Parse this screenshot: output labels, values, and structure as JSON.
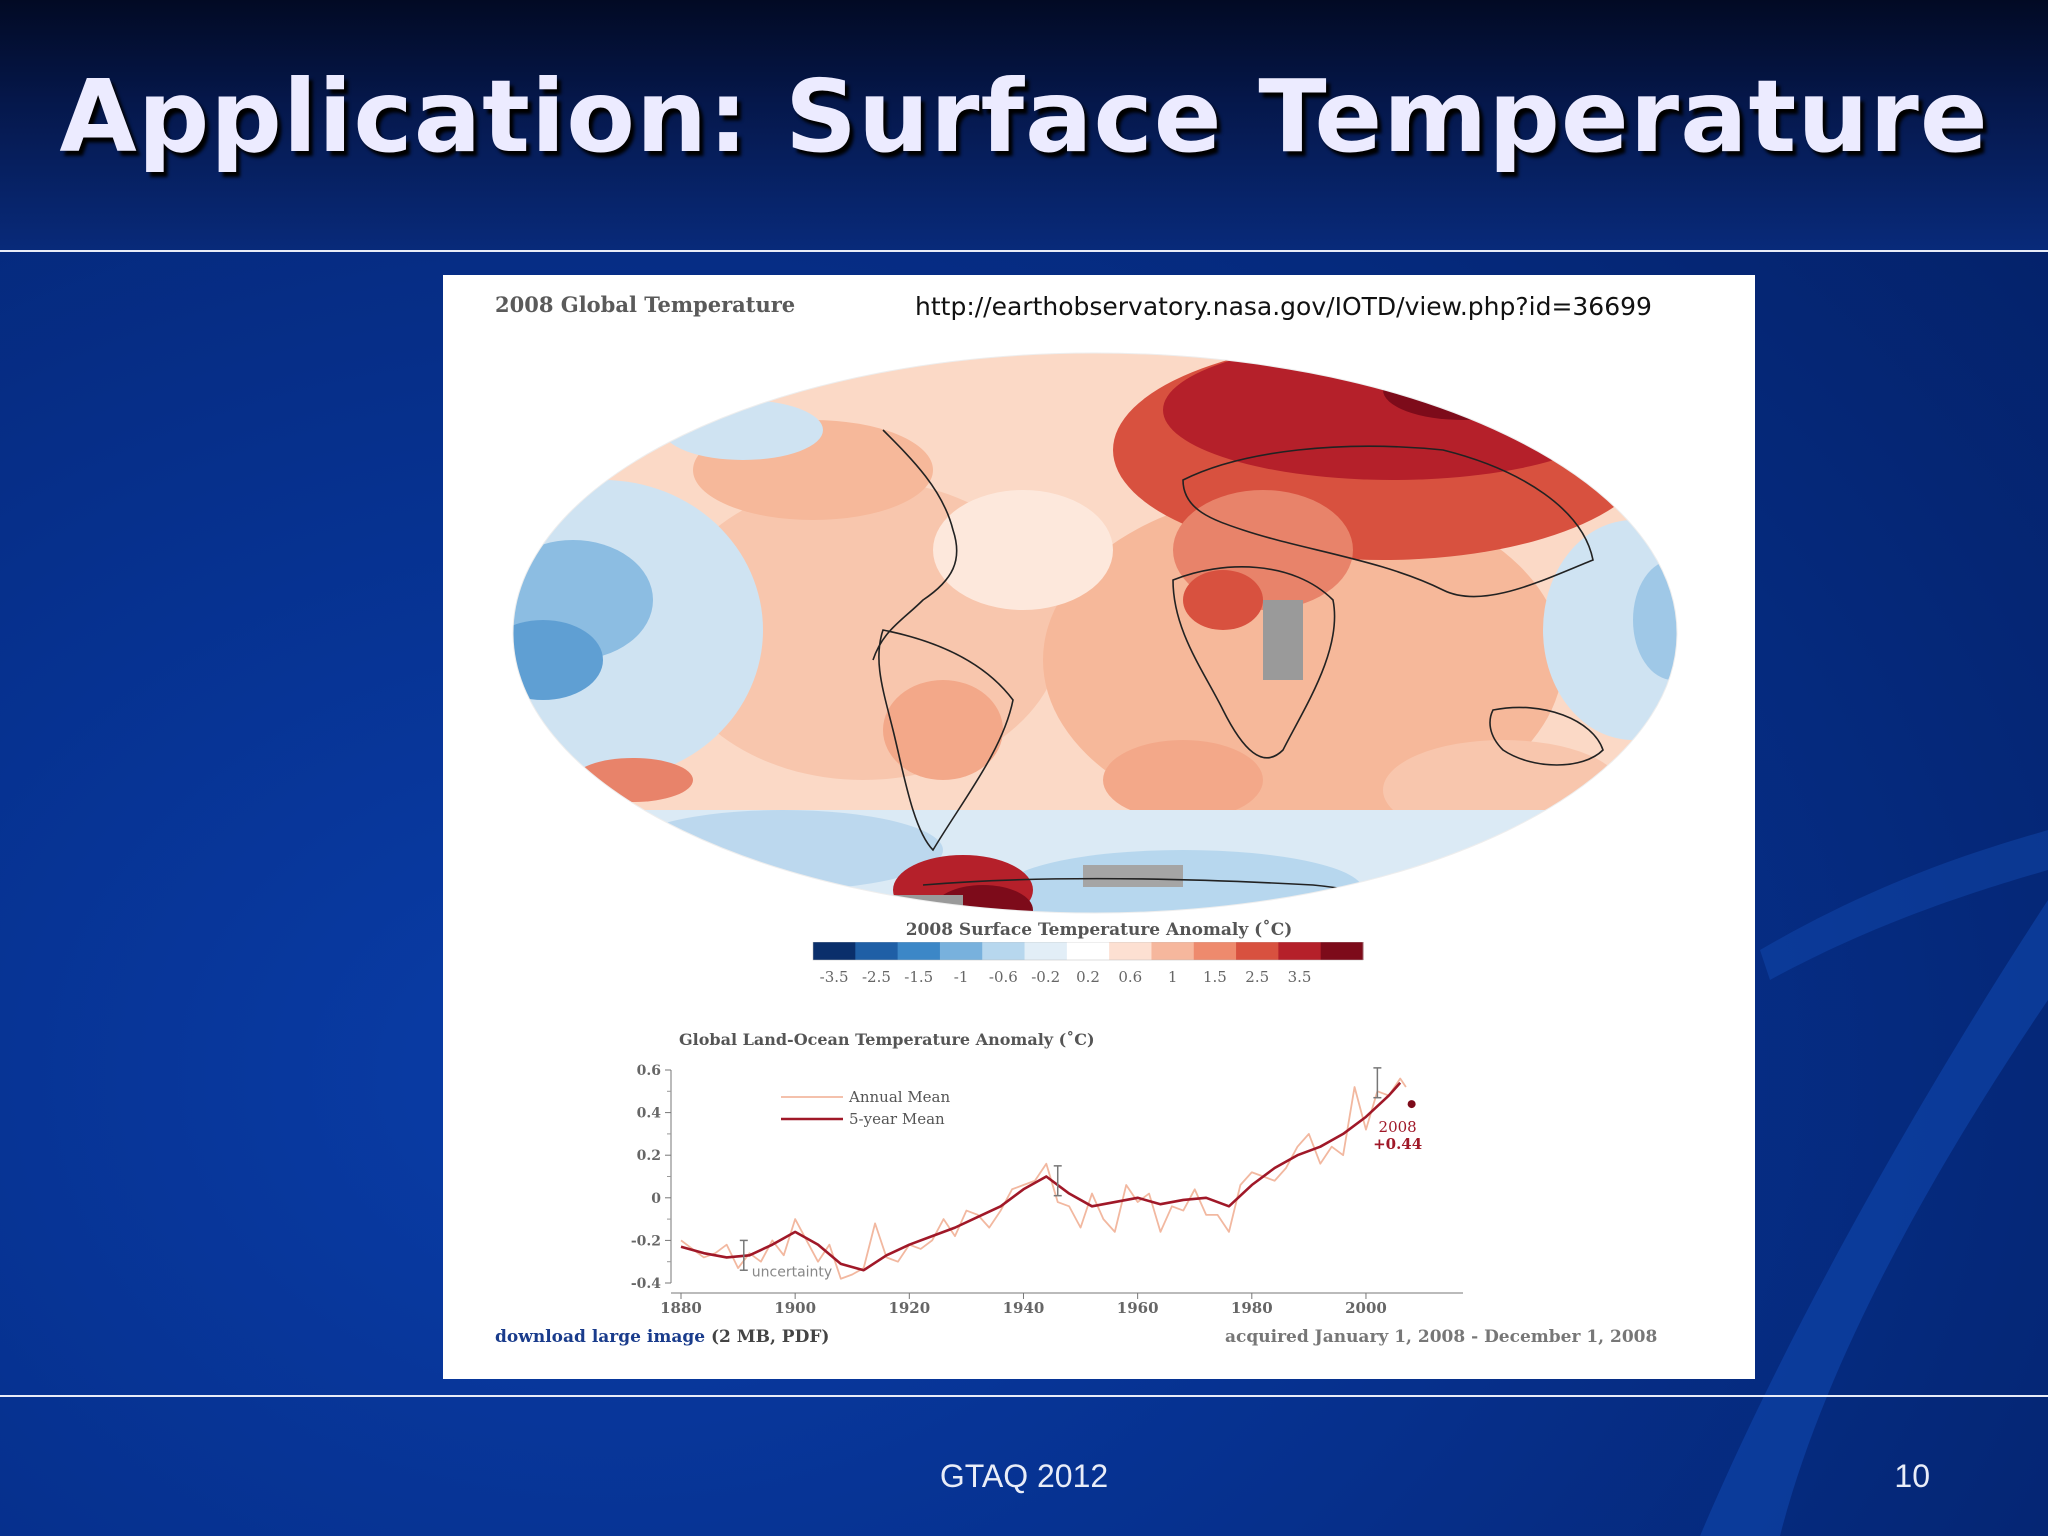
{
  "slide": {
    "title": "Application: Surface Temperature",
    "footer": "GTAQ 2012",
    "page_number": "10"
  },
  "figure": {
    "heading": "2008 Global Temperature",
    "source_url": "http://earthobservatory.nasa.gov/IOTD/view.php?id=36699",
    "colorbar_title": "2008 Surface Temperature Anomaly (˚C)",
    "colorbar_ticks": [
      "-3.5",
      "-2.5",
      "-1.5",
      "-1",
      "-0.6",
      "-0.2",
      "0.2",
      "0.6",
      "1",
      "1.5",
      "2.5",
      "3.5"
    ],
    "colorbar_colors": [
      "#0a2f6b",
      "#1f5fa6",
      "#3c87c7",
      "#78b1dd",
      "#b7d7ee",
      "#e2eef7",
      "#ffffff",
      "#fde0d2",
      "#f6b79d",
      "#ee8a6d",
      "#d8513f",
      "#b5202a",
      "#7d0b1a"
    ],
    "download_link": "download large image",
    "download_info": "(2 MB, PDF)",
    "acquired": "acquired January 1, 2008 - December 1, 2008"
  },
  "chart_data": {
    "type": "line",
    "title": "Global Land-Ocean Temperature Anomaly (˚C)",
    "xlim": [
      1880,
      2008
    ],
    "ylim": [
      -0.4,
      0.6
    ],
    "x_ticks": [
      "1880",
      "1900",
      "1920",
      "1940",
      "1960",
      "1980",
      "2000"
    ],
    "y_ticks": [
      "0.6",
      "0.4",
      "0.2",
      "0",
      "-0.2",
      "-0.4"
    ],
    "legend_position": "top-left",
    "series": [
      {
        "name": "Annual Mean",
        "color": "#f2b8a0",
        "x": [
          1880,
          1882,
          1884,
          1886,
          1888,
          1890,
          1892,
          1894,
          1896,
          1898,
          1900,
          1902,
          1904,
          1906,
          1908,
          1910,
          1912,
          1914,
          1916,
          1918,
          1920,
          1922,
          1924,
          1926,
          1928,
          1930,
          1932,
          1934,
          1936,
          1938,
          1940,
          1942,
          1944,
          1946,
          1948,
          1950,
          1952,
          1954,
          1956,
          1958,
          1960,
          1962,
          1964,
          1966,
          1968,
          1970,
          1972,
          1974,
          1976,
          1978,
          1980,
          1982,
          1984,
          1986,
          1988,
          1990,
          1992,
          1994,
          1996,
          1998,
          2000,
          2002,
          2004,
          2006,
          2007
        ],
        "y": [
          -0.2,
          -0.24,
          -0.28,
          -0.26,
          -0.22,
          -0.33,
          -0.26,
          -0.3,
          -0.2,
          -0.27,
          -0.1,
          -0.2,
          -0.3,
          -0.22,
          -0.38,
          -0.36,
          -0.33,
          -0.12,
          -0.28,
          -0.3,
          -0.22,
          -0.24,
          -0.2,
          -0.1,
          -0.18,
          -0.06,
          -0.08,
          -0.14,
          -0.06,
          0.04,
          0.06,
          0.08,
          0.16,
          -0.02,
          -0.04,
          -0.14,
          0.02,
          -0.1,
          -0.16,
          0.06,
          -0.02,
          0.02,
          -0.16,
          -0.04,
          -0.06,
          0.04,
          -0.08,
          -0.08,
          -0.16,
          0.06,
          0.12,
          0.1,
          0.08,
          0.14,
          0.24,
          0.3,
          0.16,
          0.24,
          0.2,
          0.52,
          0.32,
          0.5,
          0.48,
          0.56,
          0.52
        ]
      },
      {
        "name": "5-year Mean",
        "color": "#a01828",
        "x": [
          1880,
          1884,
          1888,
          1892,
          1896,
          1900,
          1904,
          1908,
          1912,
          1916,
          1920,
          1924,
          1928,
          1932,
          1936,
          1940,
          1944,
          1948,
          1952,
          1956,
          1960,
          1964,
          1968,
          1972,
          1976,
          1980,
          1984,
          1988,
          1992,
          1996,
          2000,
          2004,
          2006
        ],
        "y": [
          -0.23,
          -0.26,
          -0.28,
          -0.27,
          -0.22,
          -0.16,
          -0.22,
          -0.31,
          -0.34,
          -0.27,
          -0.22,
          -0.18,
          -0.14,
          -0.09,
          -0.04,
          0.04,
          0.1,
          0.02,
          -0.04,
          -0.02,
          0.0,
          -0.03,
          -0.01,
          0.0,
          -0.04,
          0.06,
          0.14,
          0.2,
          0.24,
          0.3,
          0.38,
          0.48,
          0.54
        ]
      }
    ],
    "annotations": {
      "point_label": "2008",
      "point_value": "+0.44",
      "point_x": 2008,
      "point_y": 0.44,
      "uncertainty_label": "uncertainty"
    }
  }
}
